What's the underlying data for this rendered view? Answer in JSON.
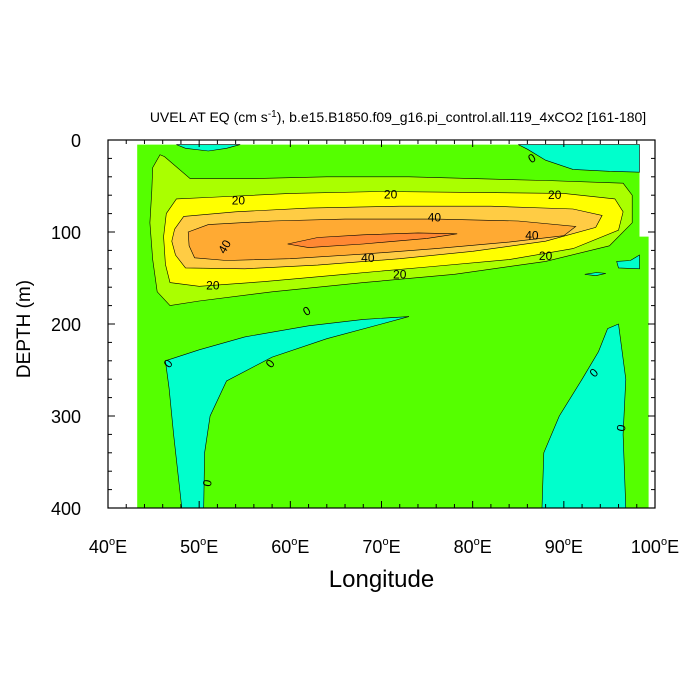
{
  "chart_data": {
    "type": "contour",
    "title": "UVEL AT EQ (cm s-1), b.e15.B1850.f09_g16.pi_control.all.119_4xCO2 [161-180]",
    "title_parts": {
      "prefix": "UVEL AT EQ (cm s",
      "sup": "-1",
      "suffix": "), b.e15.B1850.f09_g16.pi_control.all.119_4xCO2 [161-180]"
    },
    "xlabel": "Longitude",
    "ylabel": "DEPTH (m)",
    "xlim": [
      40,
      100
    ],
    "ylim": [
      0,
      400
    ],
    "y_inverted": true,
    "x_ticks": [
      {
        "value": 40,
        "num": "40",
        "sup": "o",
        "suffix": "E"
      },
      {
        "value": 50,
        "num": "50",
        "sup": "o",
        "suffix": "E"
      },
      {
        "value": 60,
        "num": "60",
        "sup": "o",
        "suffix": "E"
      },
      {
        "value": 70,
        "num": "70",
        "sup": "o",
        "suffix": "E"
      },
      {
        "value": 80,
        "num": "80",
        "sup": "o",
        "suffix": "E"
      },
      {
        "value": 90,
        "num": "90",
        "sup": "o",
        "suffix": "E"
      },
      {
        "value": 100,
        "num": "100",
        "sup": "o",
        "suffix": "E"
      }
    ],
    "y_ticks": [
      0,
      100,
      200,
      300,
      400
    ],
    "fill_colors": {
      "negative": "#00ffcc",
      "zero_to_20": "#55ff00",
      "band_20": "#aaff00",
      "band_30": "#ffff00",
      "band_40": "#ffcc44",
      "band_50": "#ffaa33",
      "core": "#ff8833"
    },
    "regions": [
      {
        "name": "domain-background",
        "level": 0,
        "fill": "zero_to_20",
        "points": [
          [
            43.2,
            5
          ],
          [
            98.3,
            5
          ],
          [
            98.3,
            105
          ],
          [
            99.3,
            105
          ],
          [
            99.3,
            400
          ],
          [
            43.2,
            400
          ]
        ]
      },
      {
        "name": "neg-region-west",
        "level": -1,
        "fill": "negative",
        "points": [
          [
            46.3,
            240
          ],
          [
            50,
            228
          ],
          [
            55,
            214
          ],
          [
            62,
            202
          ],
          [
            68,
            195
          ],
          [
            73,
            192
          ],
          [
            70,
            200
          ],
          [
            64,
            216
          ],
          [
            58,
            236
          ],
          [
            53,
            262
          ],
          [
            51.2,
            300
          ],
          [
            50.6,
            340
          ],
          [
            50.5,
            400
          ],
          [
            48.1,
            400
          ],
          [
            47.2,
            320
          ],
          [
            46.7,
            270
          ]
        ]
      },
      {
        "name": "neg-region-east",
        "level": -1,
        "fill": "negative",
        "points": [
          [
            87.6,
            400
          ],
          [
            87.8,
            340
          ],
          [
            89.5,
            300
          ],
          [
            92,
            260
          ],
          [
            93.8,
            230
          ],
          [
            94.8,
            205
          ],
          [
            96,
            200
          ],
          [
            96.8,
            260
          ],
          [
            96.5,
            320
          ],
          [
            96.8,
            400
          ]
        ]
      },
      {
        "name": "neg-region-surface-east",
        "level": -1,
        "fill": "negative",
        "points": [
          [
            85,
            5
          ],
          [
            98.3,
            5
          ],
          [
            98.3,
            35
          ],
          [
            95,
            34
          ],
          [
            91,
            32
          ],
          [
            88,
            22
          ],
          [
            86,
            10
          ]
        ]
      },
      {
        "name": "neg-region-surface-west",
        "level": -1,
        "fill": "negative",
        "points": [
          [
            47.5,
            5
          ],
          [
            54.5,
            5
          ],
          [
            53,
            9
          ],
          [
            51,
            12
          ],
          [
            48.5,
            9
          ]
        ]
      },
      {
        "name": "neg-region-small-east",
        "level": -1,
        "fill": "negative",
        "points": [
          [
            95.8,
            132
          ],
          [
            97.3,
            131
          ],
          [
            98.3,
            125
          ],
          [
            98.3,
            140
          ],
          [
            96,
            139
          ]
        ]
      },
      {
        "name": "neg-region-tiny",
        "level": -1,
        "fill": "negative",
        "points": [
          [
            92.3,
            146
          ],
          [
            93.6,
            144
          ],
          [
            94.6,
            145
          ],
          [
            93.5,
            147.5
          ]
        ]
      },
      {
        "name": "band-10",
        "level": 10,
        "fill": "band_20",
        "points": [
          [
            44.9,
            30
          ],
          [
            45.7,
            16
          ],
          [
            46.2,
            18
          ],
          [
            49,
            42
          ],
          [
            56,
            42
          ],
          [
            64,
            40
          ],
          [
            73,
            40
          ],
          [
            80,
            42
          ],
          [
            88,
            44
          ],
          [
            96.5,
            47
          ],
          [
            97.5,
            60
          ],
          [
            97.5,
            90
          ],
          [
            95,
            115
          ],
          [
            88,
            132
          ],
          [
            78,
            146
          ],
          [
            68,
            155
          ],
          [
            58,
            165
          ],
          [
            50,
            175
          ],
          [
            46.8,
            180
          ],
          [
            45.4,
            165
          ],
          [
            44.9,
            130
          ],
          [
            44.6,
            90
          ],
          [
            44.8,
            55
          ]
        ]
      },
      {
        "name": "band-20",
        "level": 20,
        "fill": "band_30",
        "points": [
          [
            46.4,
            80
          ],
          [
            47.5,
            64
          ],
          [
            52,
            62
          ],
          [
            60,
            58
          ],
          [
            70,
            56
          ],
          [
            80,
            57
          ],
          [
            90,
            58
          ],
          [
            95.6,
            64
          ],
          [
            96.5,
            78
          ],
          [
            96,
            98
          ],
          [
            91,
            118
          ],
          [
            84,
            130
          ],
          [
            75,
            138
          ],
          [
            66,
            146
          ],
          [
            57,
            154
          ],
          [
            50,
            159
          ],
          [
            46.8,
            155
          ],
          [
            46.3,
            135
          ],
          [
            46.1,
            105
          ]
        ]
      },
      {
        "name": "band-30",
        "level": 30,
        "fill": "band_40",
        "points": [
          [
            47.3,
            97
          ],
          [
            48.3,
            83
          ],
          [
            54,
            78
          ],
          [
            62,
            74
          ],
          [
            72,
            72
          ],
          [
            82,
            72
          ],
          [
            91,
            75
          ],
          [
            94.2,
            82
          ],
          [
            93.5,
            95
          ],
          [
            88,
            110
          ],
          [
            80,
            121
          ],
          [
            72,
            129
          ],
          [
            63,
            136
          ],
          [
            55,
            140
          ],
          [
            48.5,
            139
          ],
          [
            47.4,
            125
          ],
          [
            47,
            110
          ]
        ]
      },
      {
        "name": "band-40",
        "level": 40,
        "fill": "band_50",
        "points": [
          [
            48.8,
            100
          ],
          [
            51,
            92
          ],
          [
            58,
            88
          ],
          [
            66,
            86
          ],
          [
            76,
            86
          ],
          [
            85,
            88
          ],
          [
            91.3,
            94
          ],
          [
            90,
            104
          ],
          [
            84,
            111
          ],
          [
            76,
            118
          ],
          [
            68,
            124
          ],
          [
            60,
            129
          ],
          [
            53,
            131
          ],
          [
            49.5,
            128
          ],
          [
            48.9,
            115
          ]
        ]
      },
      {
        "name": "core-50",
        "level": 50,
        "fill": "core",
        "points": [
          [
            59.7,
            113
          ],
          [
            63,
            106
          ],
          [
            68,
            103
          ],
          [
            74,
            101
          ],
          [
            78.3,
            102
          ],
          [
            75,
            107
          ],
          [
            68,
            113
          ],
          [
            62,
            117
          ]
        ]
      }
    ],
    "contour_labels": [
      {
        "text": "0",
        "x": 86.5,
        "y": 20,
        "angle": -30
      },
      {
        "text": "20",
        "x": 54.3,
        "y": 66,
        "angle": 0
      },
      {
        "text": "20",
        "x": 71,
        "y": 59,
        "angle": 0
      },
      {
        "text": "20",
        "x": 89,
        "y": 60,
        "angle": 0
      },
      {
        "text": "40",
        "x": 75.8,
        "y": 84,
        "angle": 0
      },
      {
        "text": "40",
        "x": 52.8,
        "y": 116,
        "angle": -60
      },
      {
        "text": "40",
        "x": 68.5,
        "y": 128,
        "angle": 0
      },
      {
        "text": "40",
        "x": 86.5,
        "y": 104,
        "angle": 0
      },
      {
        "text": "20",
        "x": 88,
        "y": 126,
        "angle": 0
      },
      {
        "text": "20",
        "x": 72,
        "y": 146,
        "angle": 0
      },
      {
        "text": "20",
        "x": 51.5,
        "y": 158,
        "angle": 0
      },
      {
        "text": "0",
        "x": 61.8,
        "y": 186,
        "angle": -30
      },
      {
        "text": "0",
        "x": 46.6,
        "y": 243,
        "angle": -50
      },
      {
        "text": "0",
        "x": 57.8,
        "y": 243,
        "angle": -50
      },
      {
        "text": "0",
        "x": 93.3,
        "y": 253,
        "angle": -45
      },
      {
        "text": "0",
        "x": 96.3,
        "y": 313,
        "angle": -80
      },
      {
        "text": "0",
        "x": 50.9,
        "y": 373,
        "angle": -80
      }
    ]
  }
}
